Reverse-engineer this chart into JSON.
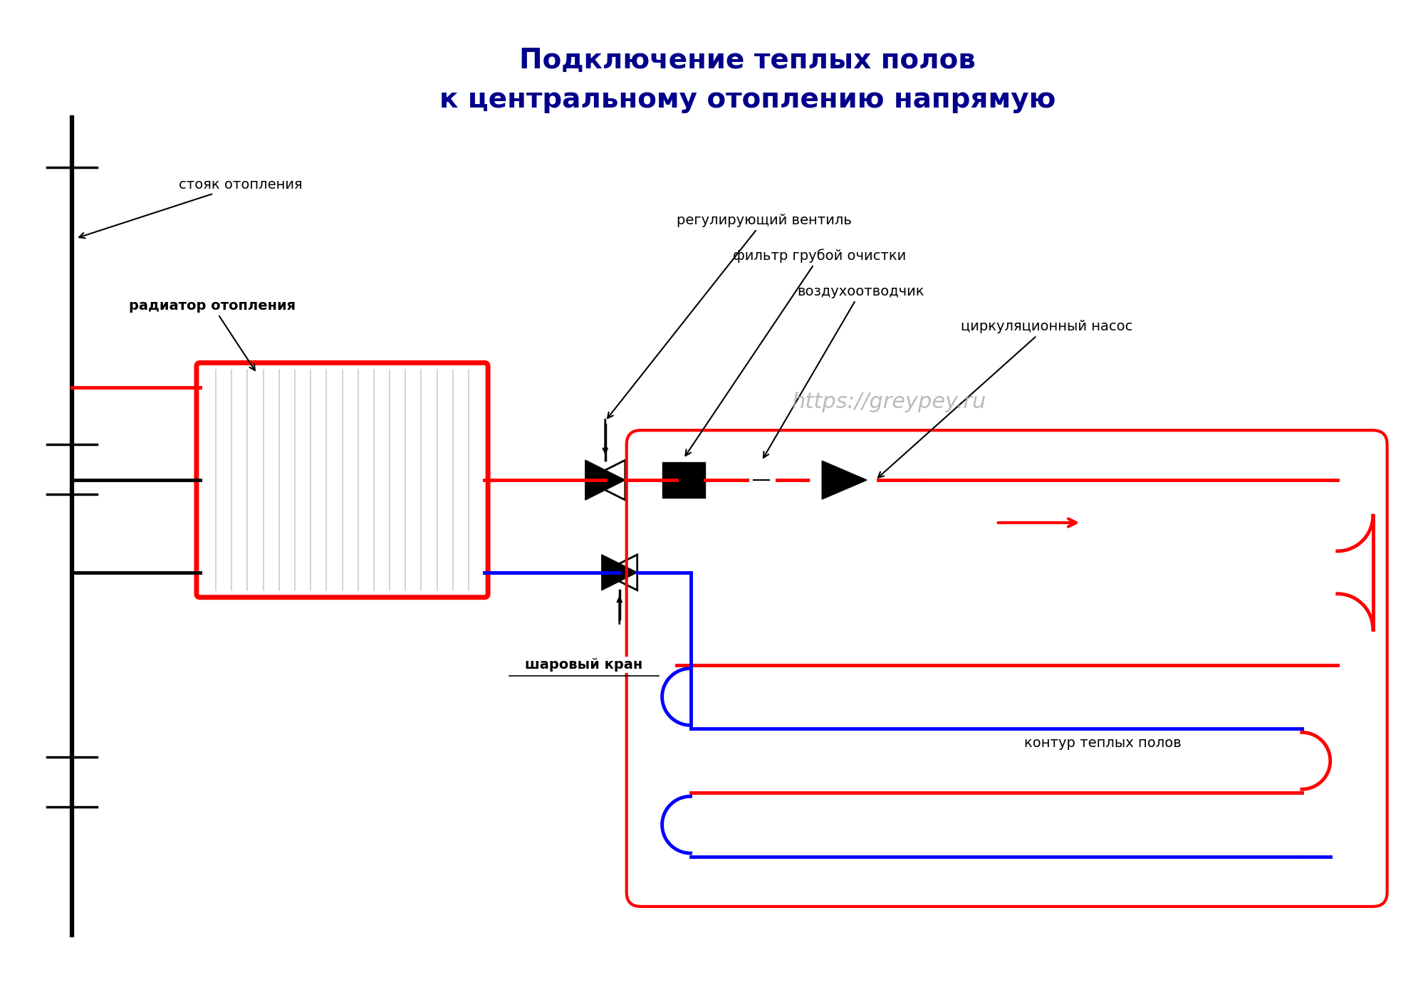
{
  "title_line1": "Подключение теплых полов",
  "title_line2": "к центральному отоплению напрямую",
  "title_color": "#00008B",
  "title_fontsize": 28,
  "bg_color": "#FFFFFF",
  "watermark": "https://greypey.ru",
  "watermark_color": "#AAAAAA",
  "label_stoyk": "стояк отопления",
  "label_radiator": "радиатор отопления",
  "label_ventil": "регулирующий вентиль",
  "label_filter": "фильтр грубой очистки",
  "label_air": "воздухоотводчик",
  "label_pump": "циркуляционный насос",
  "label_kran": "шаровый кран",
  "label_kontur": "контур теплых полов",
  "red_color": "#FF0000",
  "blue_color": "#0000FF",
  "black_color": "#000000"
}
